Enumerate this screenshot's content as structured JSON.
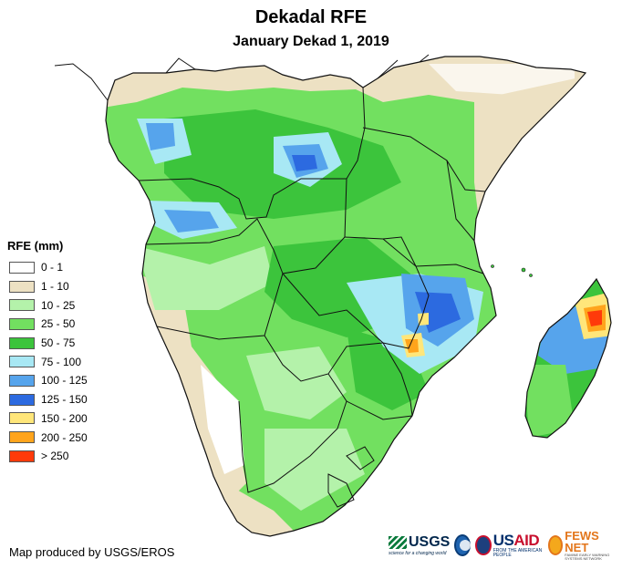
{
  "title": "Dekadal RFE",
  "subtitle": "January Dekad 1, 2019",
  "legend": {
    "title": "RFE (mm)",
    "items": [
      {
        "label": "0 - 1",
        "color": "#ffffff"
      },
      {
        "label": "1 - 10",
        "color": "#ede1c3"
      },
      {
        "label": "10 - 25",
        "color": "#b4f2aa"
      },
      {
        "label": "25 - 50",
        "color": "#72e060"
      },
      {
        "label": "50 - 75",
        "color": "#3cc43c"
      },
      {
        "label": "75 - 100",
        "color": "#a8e8f4"
      },
      {
        "label": "100 - 125",
        "color": "#56a4ec"
      },
      {
        "label": "125 - 150",
        "color": "#2c6ae0"
      },
      {
        "label": "150 - 200",
        "color": "#ffe67a"
      },
      {
        "label": "200 - 250",
        "color": "#ffa41c"
      },
      {
        "label": "> 250",
        "color": "#ff3a0a"
      }
    ]
  },
  "credit": "Map produced by USGS/EROS",
  "logos": {
    "usgs": "USGS",
    "usgs_tagline": "science for a changing world",
    "noaa": "NOAA",
    "usaid_us": "US",
    "usaid_aid": "AID",
    "usaid_tagline": "FROM THE AMERICAN PEOPLE",
    "fews": "FEWS NET",
    "fews_tagline": "FAMINE EARLY WARNING SYSTEMS NETWORK"
  },
  "colors": {
    "border": "#111111",
    "background": "#ffffff"
  }
}
